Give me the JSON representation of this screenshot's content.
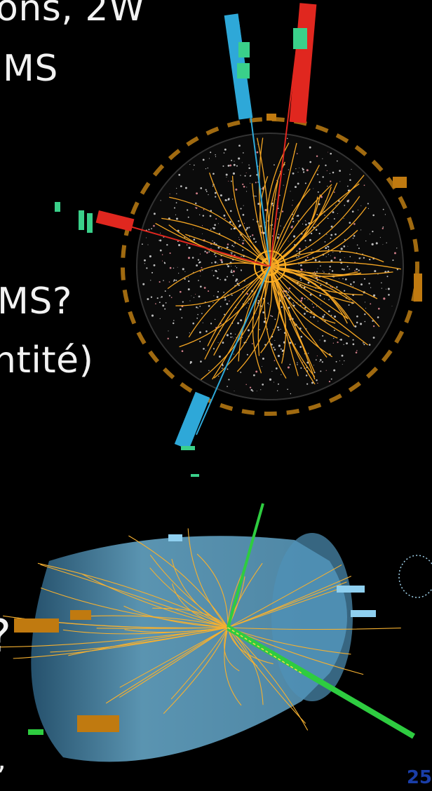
{
  "slide": {
    "line1": "ons, 2W",
    "line2": "MS",
    "line3": ")",
    "line4": "MS?",
    "line5": "ntité)",
    "line6": "?",
    "line7": ",",
    "page_number": "25"
  },
  "colors": {
    "background": "#000000",
    "track": "#f5a623",
    "muon": "#2ea8d8",
    "electron": "#e0271f",
    "calorimeter_green": "#2ecc40",
    "detector_blue": "#7ec8ea",
    "page_number": "#1a3ea8"
  },
  "event_displays": [
    {
      "name": "cms-event-display",
      "description_icon": "collision-event-display-icon"
    },
    {
      "name": "atlas-event-display",
      "description_icon": "detector-3d-event-icon"
    }
  ]
}
